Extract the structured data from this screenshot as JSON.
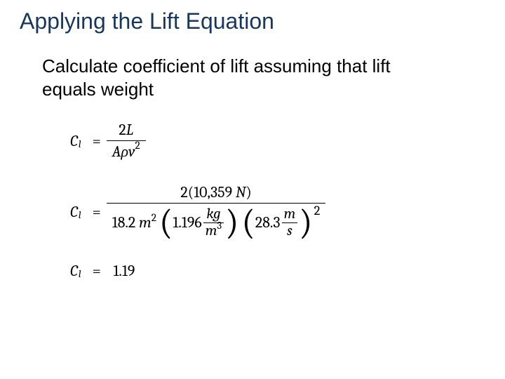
{
  "title": "Applying the Lift Equation",
  "subtitle": "Calculate coefficient of lift assuming that lift equals weight",
  "symbol": {
    "var": "C",
    "sub": "l"
  },
  "eq1": {
    "num": {
      "coef": "2",
      "var": "L"
    },
    "den": {
      "a": "A",
      "rho": "ρ",
      "v": "v",
      "exp": "2"
    }
  },
  "eq2": {
    "num": {
      "coef": "2",
      "lift_val": "10,359",
      "lift_unit": "N"
    },
    "den": {
      "area_val": "18.2",
      "area_unit": "m",
      "area_exp": "2",
      "rho_val": "1.196",
      "rho_unit_num": "kg",
      "rho_unit_den_base": "m",
      "rho_unit_den_exp": "3",
      "vel_val": "28.3",
      "vel_unit_num": "m",
      "vel_unit_den": "s",
      "vel_exp": "2"
    }
  },
  "result": "1.19",
  "colors": {
    "title": "#17375e",
    "text": "#000000",
    "bg": "#ffffff"
  }
}
